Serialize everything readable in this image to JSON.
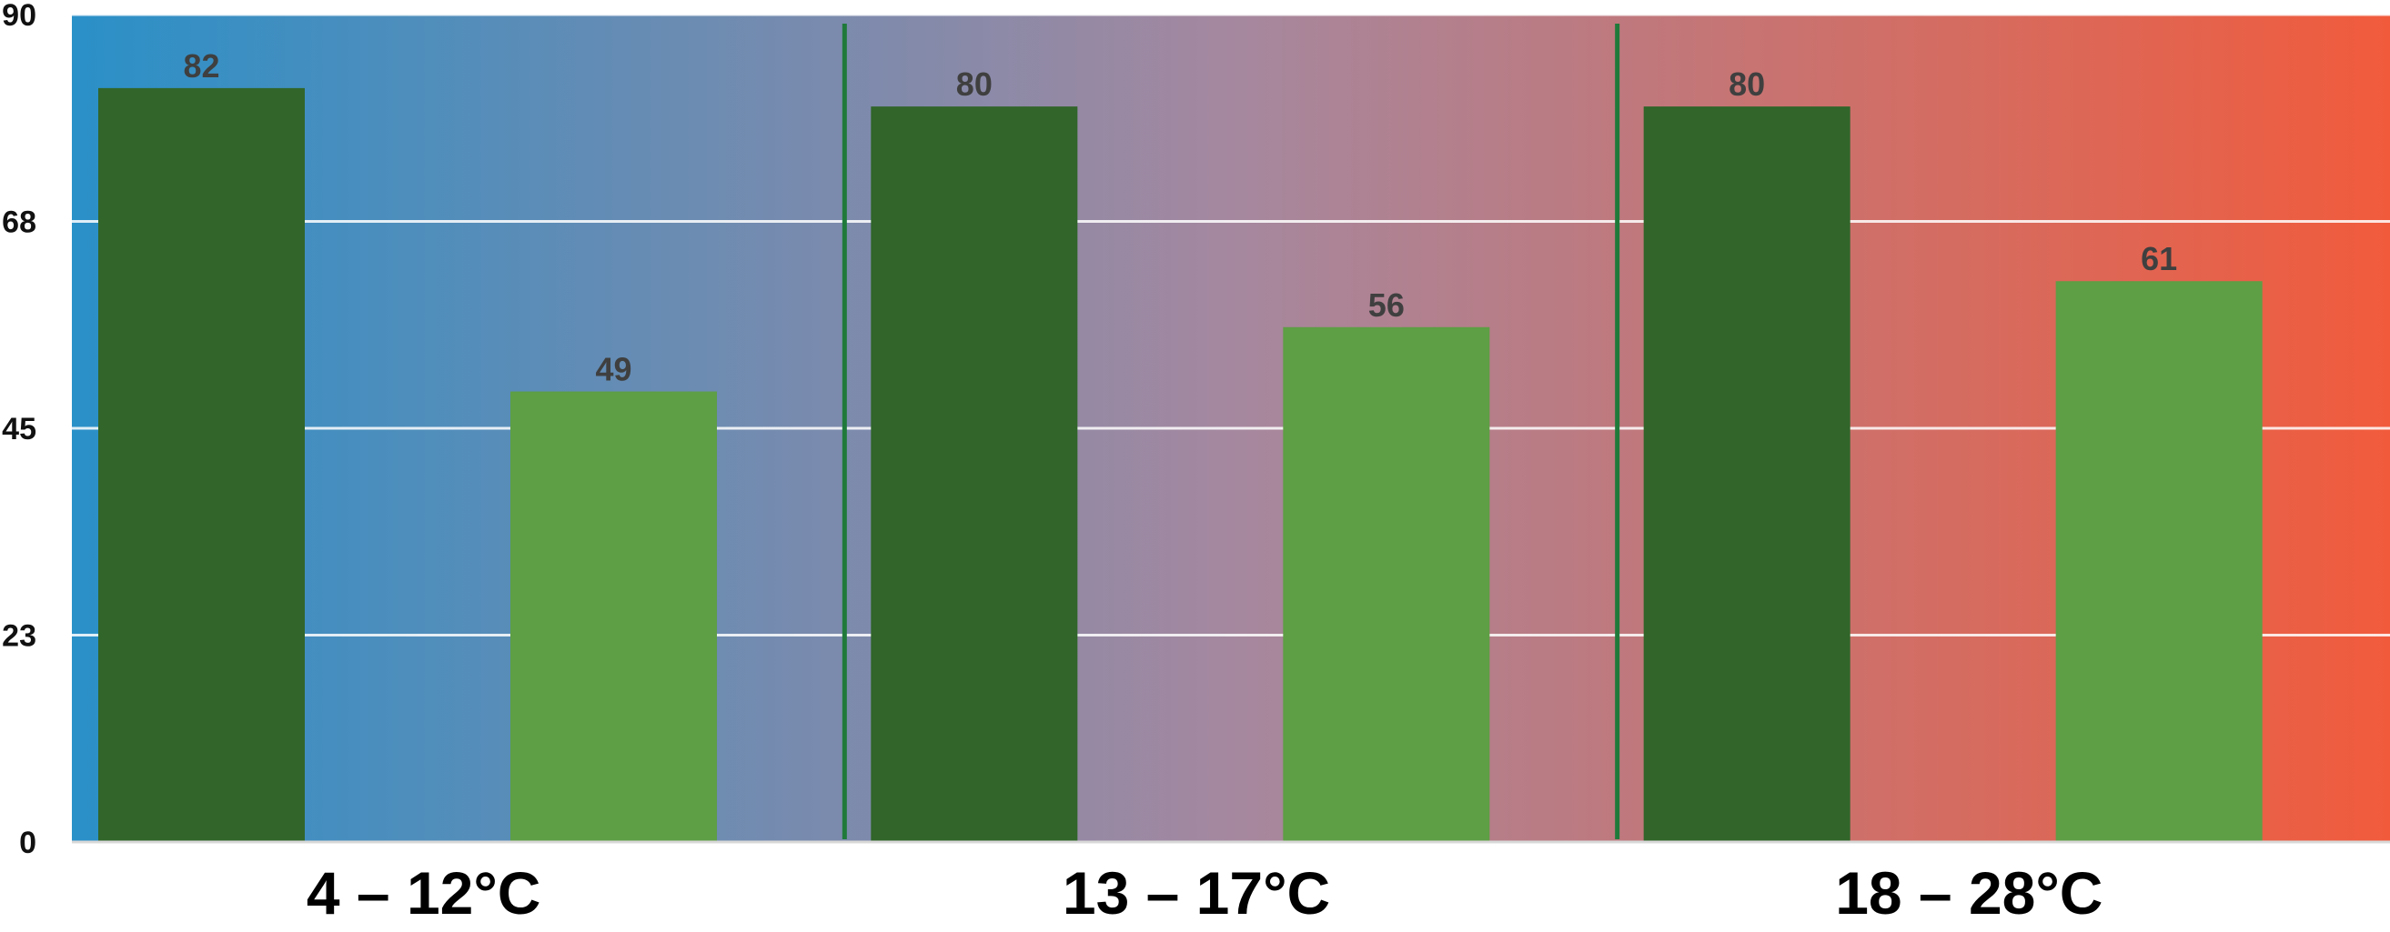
{
  "chart_data": {
    "type": "bar",
    "categories": [
      "4 – 12°C",
      "13 – 17°C",
      "18 – 28°C"
    ],
    "series": [
      {
        "values": [
          82,
          80,
          80
        ],
        "color": "#31652a"
      },
      {
        "values": [
          49,
          56,
          61
        ],
        "color": "#5e9e45"
      }
    ],
    "ylim": [
      0,
      90
    ],
    "yticks": [
      "0",
      "23",
      "45",
      "68",
      "90"
    ],
    "ytick_values": [
      0,
      22.5,
      45,
      67.5,
      90
    ],
    "grid": true,
    "background_gradient": [
      "#2a90c8",
      "#a5889f",
      "#f15b3c"
    ],
    "separator_color": "#1f7a3a"
  }
}
